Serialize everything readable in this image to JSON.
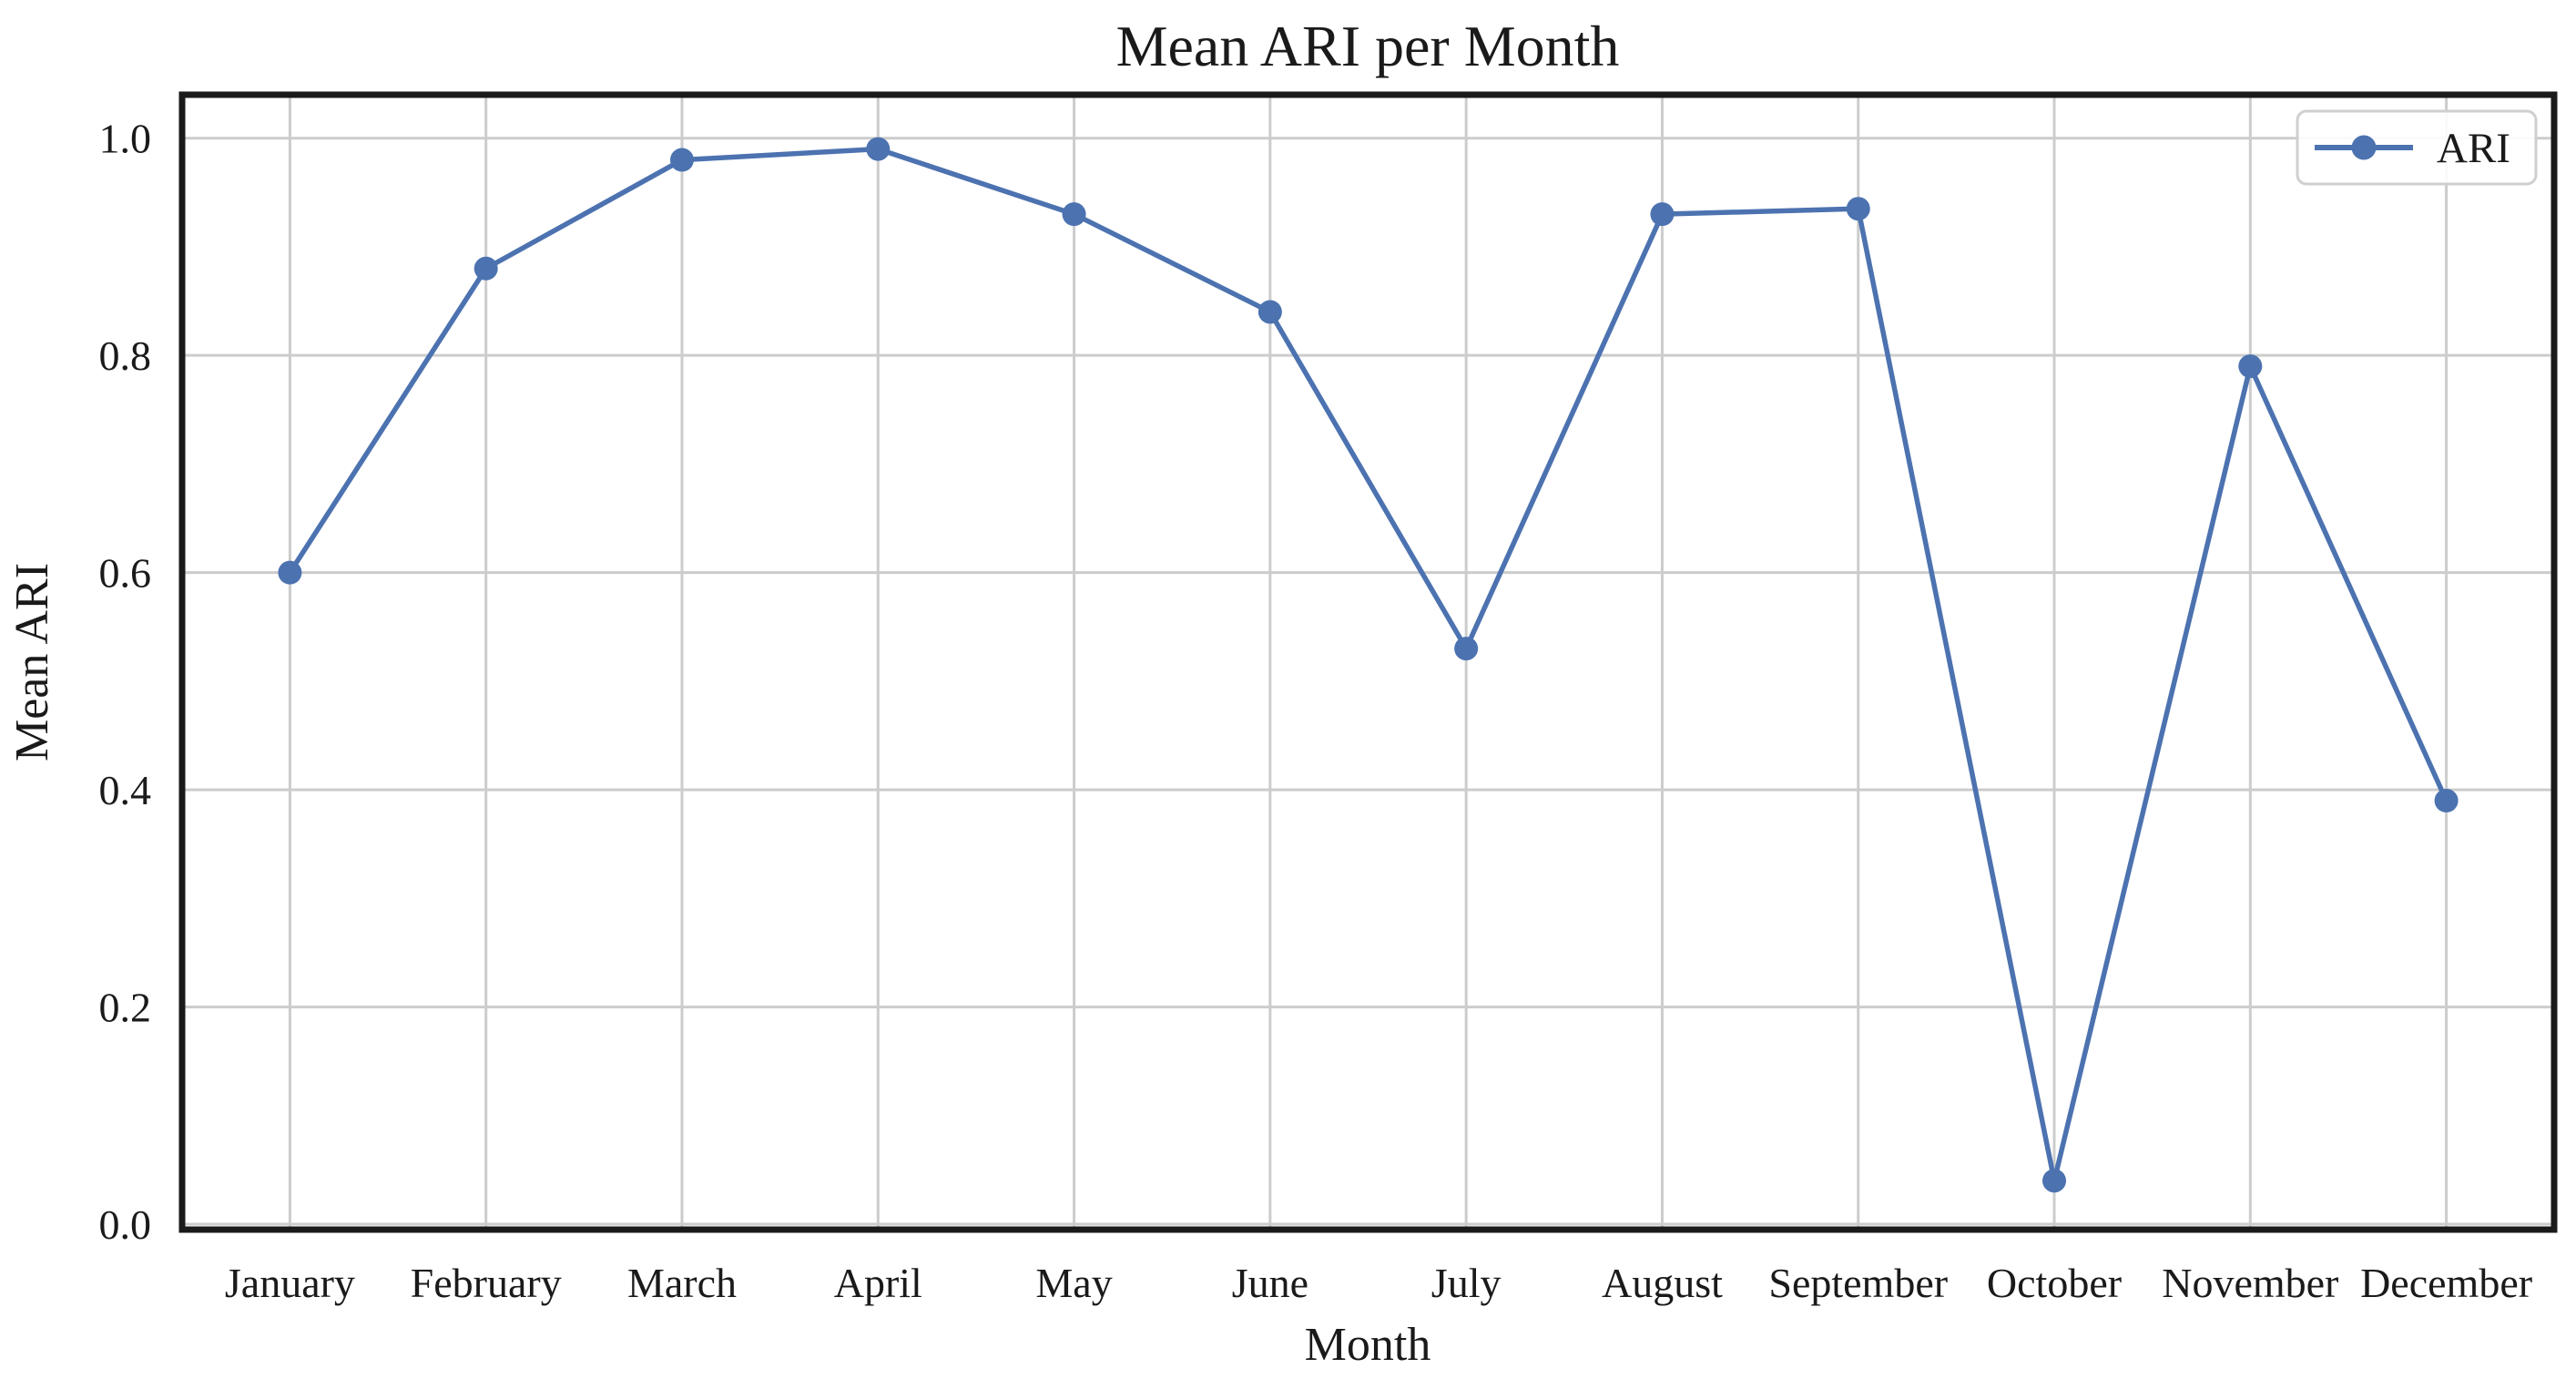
{
  "chart_data": {
    "type": "line",
    "title": "Mean ARI per Month",
    "xlabel": "Month",
    "ylabel": "Mean ARI",
    "categories": [
      "January",
      "February",
      "March",
      "April",
      "May",
      "June",
      "July",
      "August",
      "September",
      "October",
      "November",
      "December"
    ],
    "series": [
      {
        "name": "ARI",
        "color": "#4C72B0",
        "marker": "circle",
        "values": [
          0.6,
          0.88,
          0.98,
          0.99,
          0.93,
          0.84,
          0.53,
          0.93,
          0.935,
          0.04,
          0.79,
          0.39
        ]
      }
    ],
    "yticks": {
      "values": [
        0.0,
        0.2,
        0.4,
        0.6,
        0.8,
        1.0
      ],
      "labels": [
        "0.0",
        "0.2",
        "0.4",
        "0.6",
        "0.8",
        "1.0"
      ]
    },
    "ylim": [
      -0.005,
      1.04
    ],
    "grid": true,
    "legend_position": "upper right",
    "colors": {
      "line": "#4C72B0",
      "grid": "#cccccc",
      "spine": "#1a1a1a",
      "text": "#1a1a1a",
      "background": "#ffffff",
      "legend_border": "#cfcfcf",
      "legend_fill": "#ffffff"
    }
  }
}
